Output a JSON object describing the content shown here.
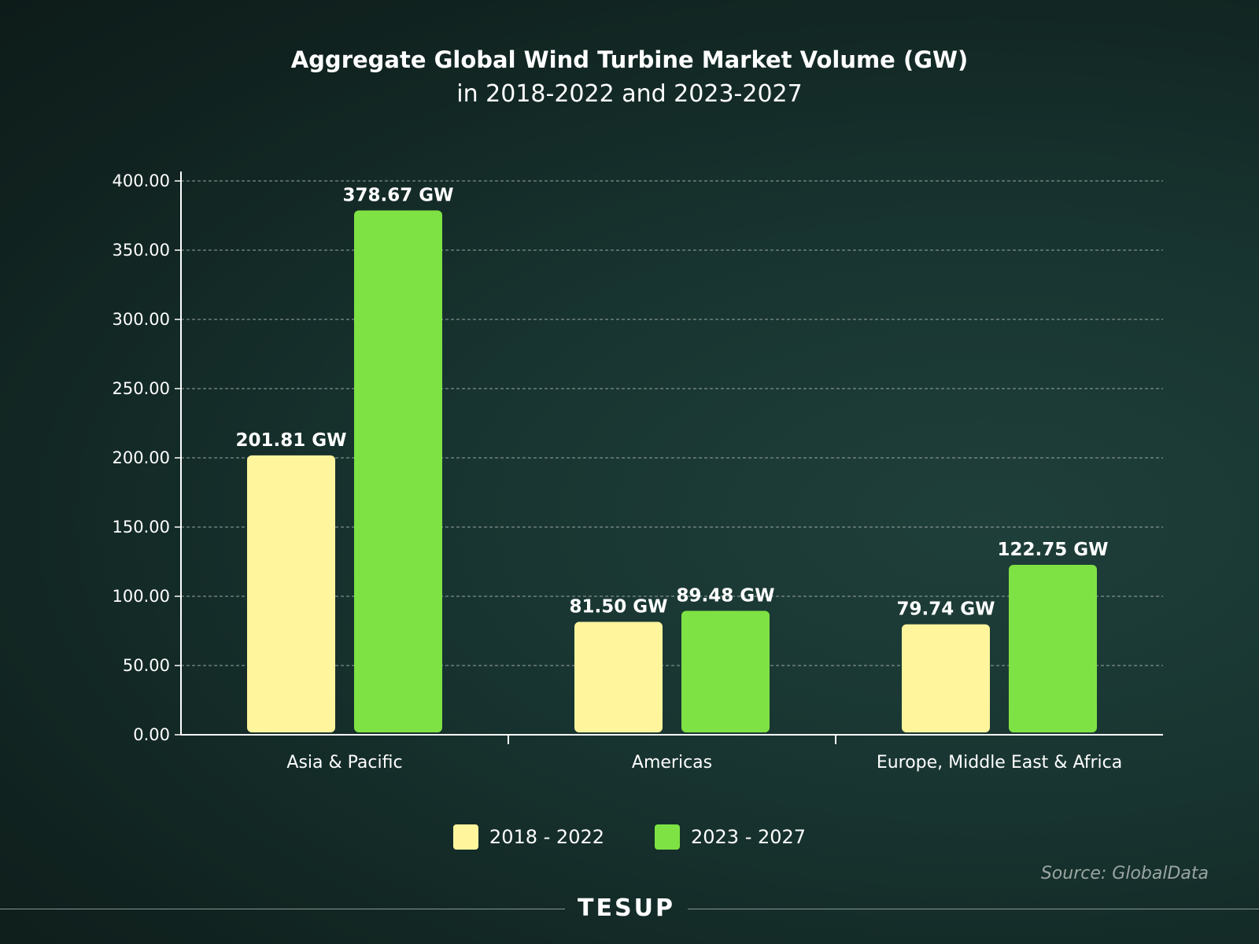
{
  "chart_data": {
    "type": "bar",
    "title": "Aggregate Global Wind Turbine Market Volume (GW)",
    "subtitle": "in 2018-2022 and 2023-2027",
    "categories": [
      "Asia & Pacific",
      "Americas",
      "Europe, Middle East & Africa"
    ],
    "series": [
      {
        "name": "2018 - 2022",
        "color": "#fff59d",
        "values": [
          201.81,
          81.5,
          79.74
        ],
        "labels": [
          "201.81 GW",
          "81.50 GW",
          "79.74 GW"
        ]
      },
      {
        "name": "2023 - 2027",
        "color": "#7ee244",
        "values": [
          378.67,
          89.48,
          122.75
        ],
        "labels": [
          "378.67 GW",
          "89.48 GW",
          "122.75 GW"
        ]
      }
    ],
    "ylim": [
      0,
      400
    ],
    "yticks": [
      "0.00",
      "50.00",
      "100.00",
      "150.00",
      "200.00",
      "250.00",
      "300.00",
      "350.00",
      "400.00"
    ],
    "grid": true,
    "legend_position": "bottom-center"
  },
  "footer": {
    "source": "Source: GlobalData",
    "brand": "TESUP"
  }
}
